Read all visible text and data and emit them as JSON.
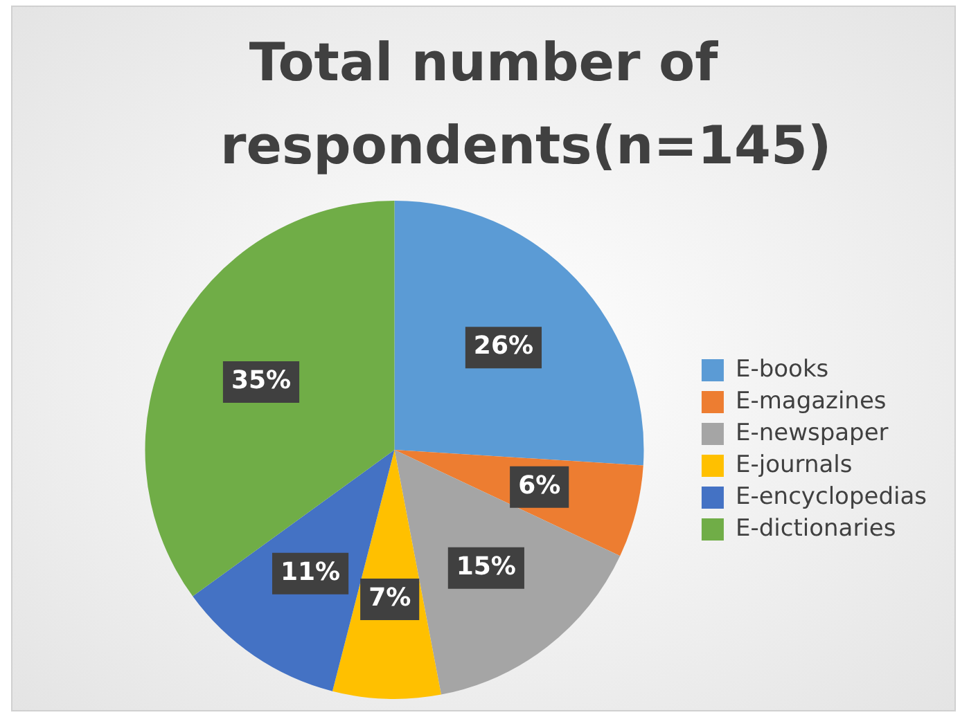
{
  "chart_data": {
    "type": "pie",
    "title": "Total number of respondents(n=145)",
    "categories": [
      "E-books",
      "E-magazines",
      "E-newspaper",
      "E-journals",
      "E-encyclopedias",
      "E-dictionaries"
    ],
    "values": [
      26,
      6,
      15,
      7,
      11,
      35
    ],
    "value_labels": [
      "26%",
      "6%",
      "15%",
      "7%",
      "11%",
      "35%"
    ],
    "colors": [
      "#5b9bd5",
      "#ed7d31",
      "#a5a5a5",
      "#ffc000",
      "#4472c4",
      "#70ad47"
    ],
    "legend": "right"
  }
}
